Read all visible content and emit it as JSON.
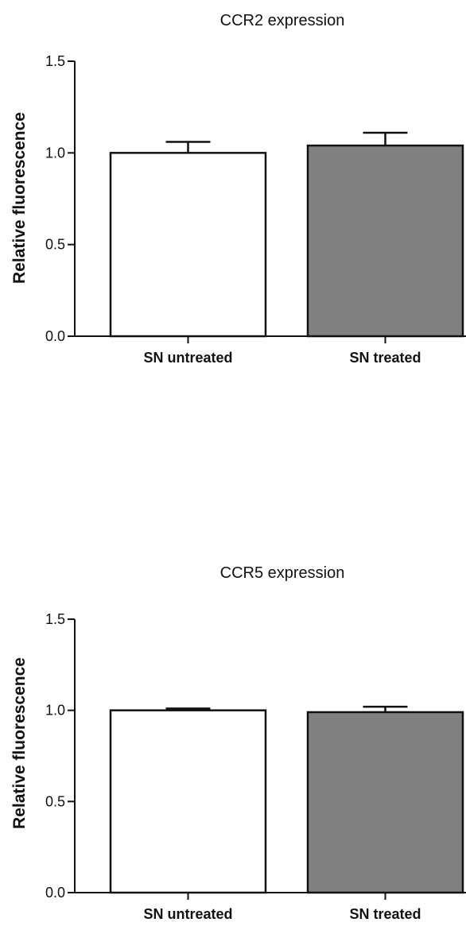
{
  "chart_data": [
    {
      "type": "bar",
      "title": "CCR2 expression",
      "ylabel": "Relative fluorescence",
      "xlabel": "",
      "categories": [
        "SN untreated",
        "SN treated"
      ],
      "values": [
        1.0,
        1.04
      ],
      "errors": [
        0.06,
        0.07
      ],
      "colors": [
        "#ffffff",
        "#808080"
      ],
      "ylim": [
        0,
        1.5
      ],
      "yticks": [
        0.0,
        0.5,
        1.0,
        1.5
      ],
      "ytick_labels": [
        "0.0",
        "0.5",
        "1.0",
        "1.5"
      ],
      "grid": false,
      "legend": "none"
    },
    {
      "type": "bar",
      "title": "CCR5 expression",
      "ylabel": "Relative fluorescence",
      "xlabel": "",
      "categories": [
        "SN untreated",
        "SN treated"
      ],
      "values": [
        1.0,
        0.99
      ],
      "errors": [
        0.01,
        0.03
      ],
      "colors": [
        "#ffffff",
        "#808080"
      ],
      "ylim": [
        0,
        1.5
      ],
      "yticks": [
        0.0,
        0.5,
        1.0,
        1.5
      ],
      "ytick_labels": [
        "0.0",
        "0.5",
        "1.0",
        "1.5"
      ],
      "grid": false,
      "legend": "none"
    }
  ]
}
